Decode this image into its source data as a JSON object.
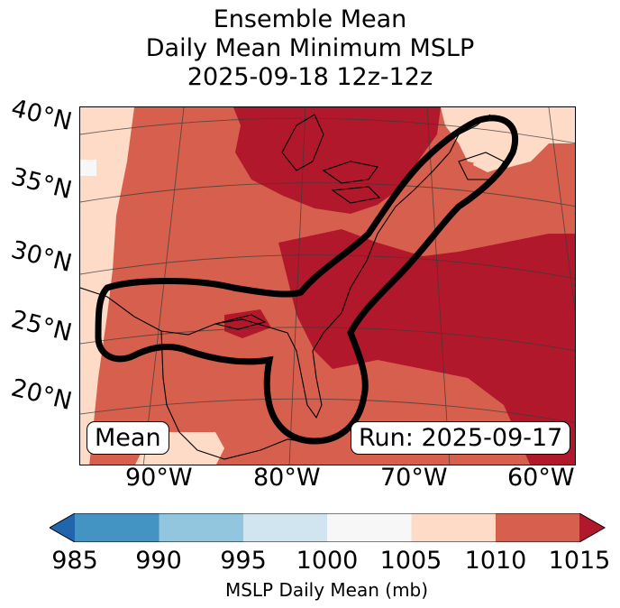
{
  "title": {
    "line1": "Ensemble Mean",
    "line2": "Daily Mean Minimum MSLP",
    "line3": "2025-09-18 12z-12z"
  },
  "map": {
    "lat_labels": [
      "40°N",
      "35°N",
      "30°N",
      "25°N",
      "20°N"
    ],
    "lon_labels": [
      "90°W",
      "80°W",
      "70°W",
      "60°W"
    ],
    "mean_label": "Mean",
    "run_label": "Run: 2025-09-17",
    "region": "Eastern United States, Gulf of Mexico and western Atlantic",
    "contour_color": "#000000"
  },
  "colorbar": {
    "label": "MSLP Daily Mean (mb)",
    "ticks": [
      "985",
      "990",
      "995",
      "1000",
      "1005",
      "1010",
      "1015"
    ],
    "colors": {
      "below_985": "#2166ac",
      "985_990": "#4393c3",
      "990_995": "#92c5de",
      "995_1000": "#d1e5f0",
      "1000_1005": "#f7f7f7",
      "1005_1010": "#fddbc7",
      "1010_1015": "#d6604d",
      "above_1015": "#b2182b"
    }
  }
}
